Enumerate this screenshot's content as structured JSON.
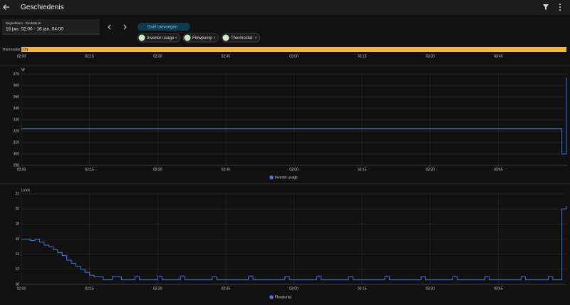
{
  "header": {
    "title": "Geschiedenis"
  },
  "date_picker": {
    "label": "Begindatum - Einddatum",
    "value": "16 jan, 02:00 - 16 jan, 04:00"
  },
  "add_target": "Doel toevoegen",
  "chips": [
    "Inverter usage",
    "Flowpump",
    "Thermostat"
  ],
  "timeline": {
    "name": "Thermostat",
    "state": "ON",
    "color": "#f4b73a",
    "xticks": [
      "02:00",
      "02:15",
      "02:30",
      "02:45",
      "03:00",
      "03:15",
      "03:30",
      "03:45"
    ]
  },
  "charts": [
    {
      "type": "line",
      "unit": "W",
      "xlim": [
        "02:00",
        "04:00"
      ],
      "xticks": [
        "02:00",
        "02:15",
        "02:30",
        "02:45",
        "03:00",
        "03:15",
        "03:30",
        "03:45"
      ],
      "ylim": [
        290,
        370
      ],
      "yticks": [
        290,
        300,
        310,
        320,
        330,
        340,
        350,
        360,
        370
      ],
      "grid": true,
      "series": [
        {
          "name": "Inverter usage",
          "color": "#4a72d8",
          "x": [
            "02:00",
            "03:59",
            "04:00"
          ],
          "values": [
            322,
            300,
            367
          ]
        }
      ]
    },
    {
      "type": "line",
      "unit": "L/min",
      "xlim": [
        "02:00",
        "04:00"
      ],
      "xticks": [
        "02:00",
        "02:15",
        "02:30",
        "02:45",
        "03:00",
        "03:15",
        "03:30",
        "03:45"
      ],
      "ylim": [
        10,
        22
      ],
      "yticks": [
        10,
        12,
        14,
        16,
        18,
        20,
        22
      ],
      "grid": true,
      "series": [
        {
          "name": "Flowpump",
          "color": "#4a72d8",
          "x": [
            "02:00",
            "02:02",
            "02:03",
            "02:04",
            "02:05",
            "02:06",
            "02:07",
            "02:08",
            "02:09",
            "02:10",
            "02:11",
            "02:12",
            "02:13",
            "02:14",
            "02:15",
            "02:16",
            "02:18",
            "02:20",
            "02:22",
            "02:25",
            "02:26",
            "02:30",
            "02:31",
            "02:35",
            "02:36",
            "02:42",
            "02:43",
            "02:50",
            "02:51",
            "02:58",
            "02:59",
            "03:05",
            "03:06",
            "03:12",
            "03:13",
            "03:20",
            "03:21",
            "03:28",
            "03:29",
            "03:35",
            "03:36",
            "03:42",
            "03:43",
            "03:50",
            "03:51",
            "03:56",
            "03:57",
            "03:59",
            "04:00"
          ],
          "values": [
            16,
            15.8,
            16,
            15.6,
            15.2,
            15,
            14.6,
            14.2,
            13.8,
            13.2,
            12.8,
            12.4,
            12,
            11.6,
            11.2,
            11,
            10.6,
            11,
            10.6,
            11,
            10.6,
            11,
            10.6,
            11,
            10.6,
            11,
            10.6,
            11,
            10.6,
            11,
            10.6,
            11,
            10.6,
            11,
            10.6,
            11,
            10.6,
            11,
            10.6,
            11,
            10.6,
            11,
            10.6,
            11,
            10.6,
            11,
            10.6,
            20,
            20.4
          ]
        }
      ]
    }
  ]
}
